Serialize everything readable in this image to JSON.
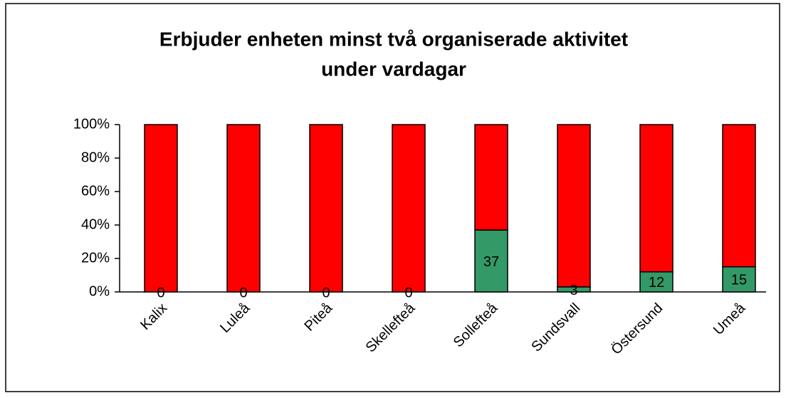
{
  "chart_data": {
    "type": "stacked_bar",
    "title": [
      "Erbjuder enheten minst två organiserade aktivitet",
      "under vardagar"
    ],
    "categories": [
      "Kalix",
      "Luleå",
      "Piteå",
      "Skellefteå",
      "Sollefteå",
      "Sundsvall",
      "Östersund",
      "Umeå"
    ],
    "series": [
      {
        "color": "#339966",
        "values": [
          0,
          0,
          0,
          0,
          37,
          3,
          12,
          15
        ]
      },
      {
        "color": "#ff0000",
        "values": [
          100,
          100,
          100,
          100,
          63,
          97,
          88,
          85
        ]
      }
    ],
    "data_labels_series": 0,
    "ylim": [
      0,
      100
    ],
    "yticks": [
      {
        "value": 0,
        "label": "0%"
      },
      {
        "value": 20,
        "label": "20%"
      },
      {
        "value": 40,
        "label": "40%"
      },
      {
        "value": 60,
        "label": "60%"
      },
      {
        "value": 80,
        "label": "80%"
      },
      {
        "value": 100,
        "label": "100%"
      }
    ],
    "grid": false
  }
}
